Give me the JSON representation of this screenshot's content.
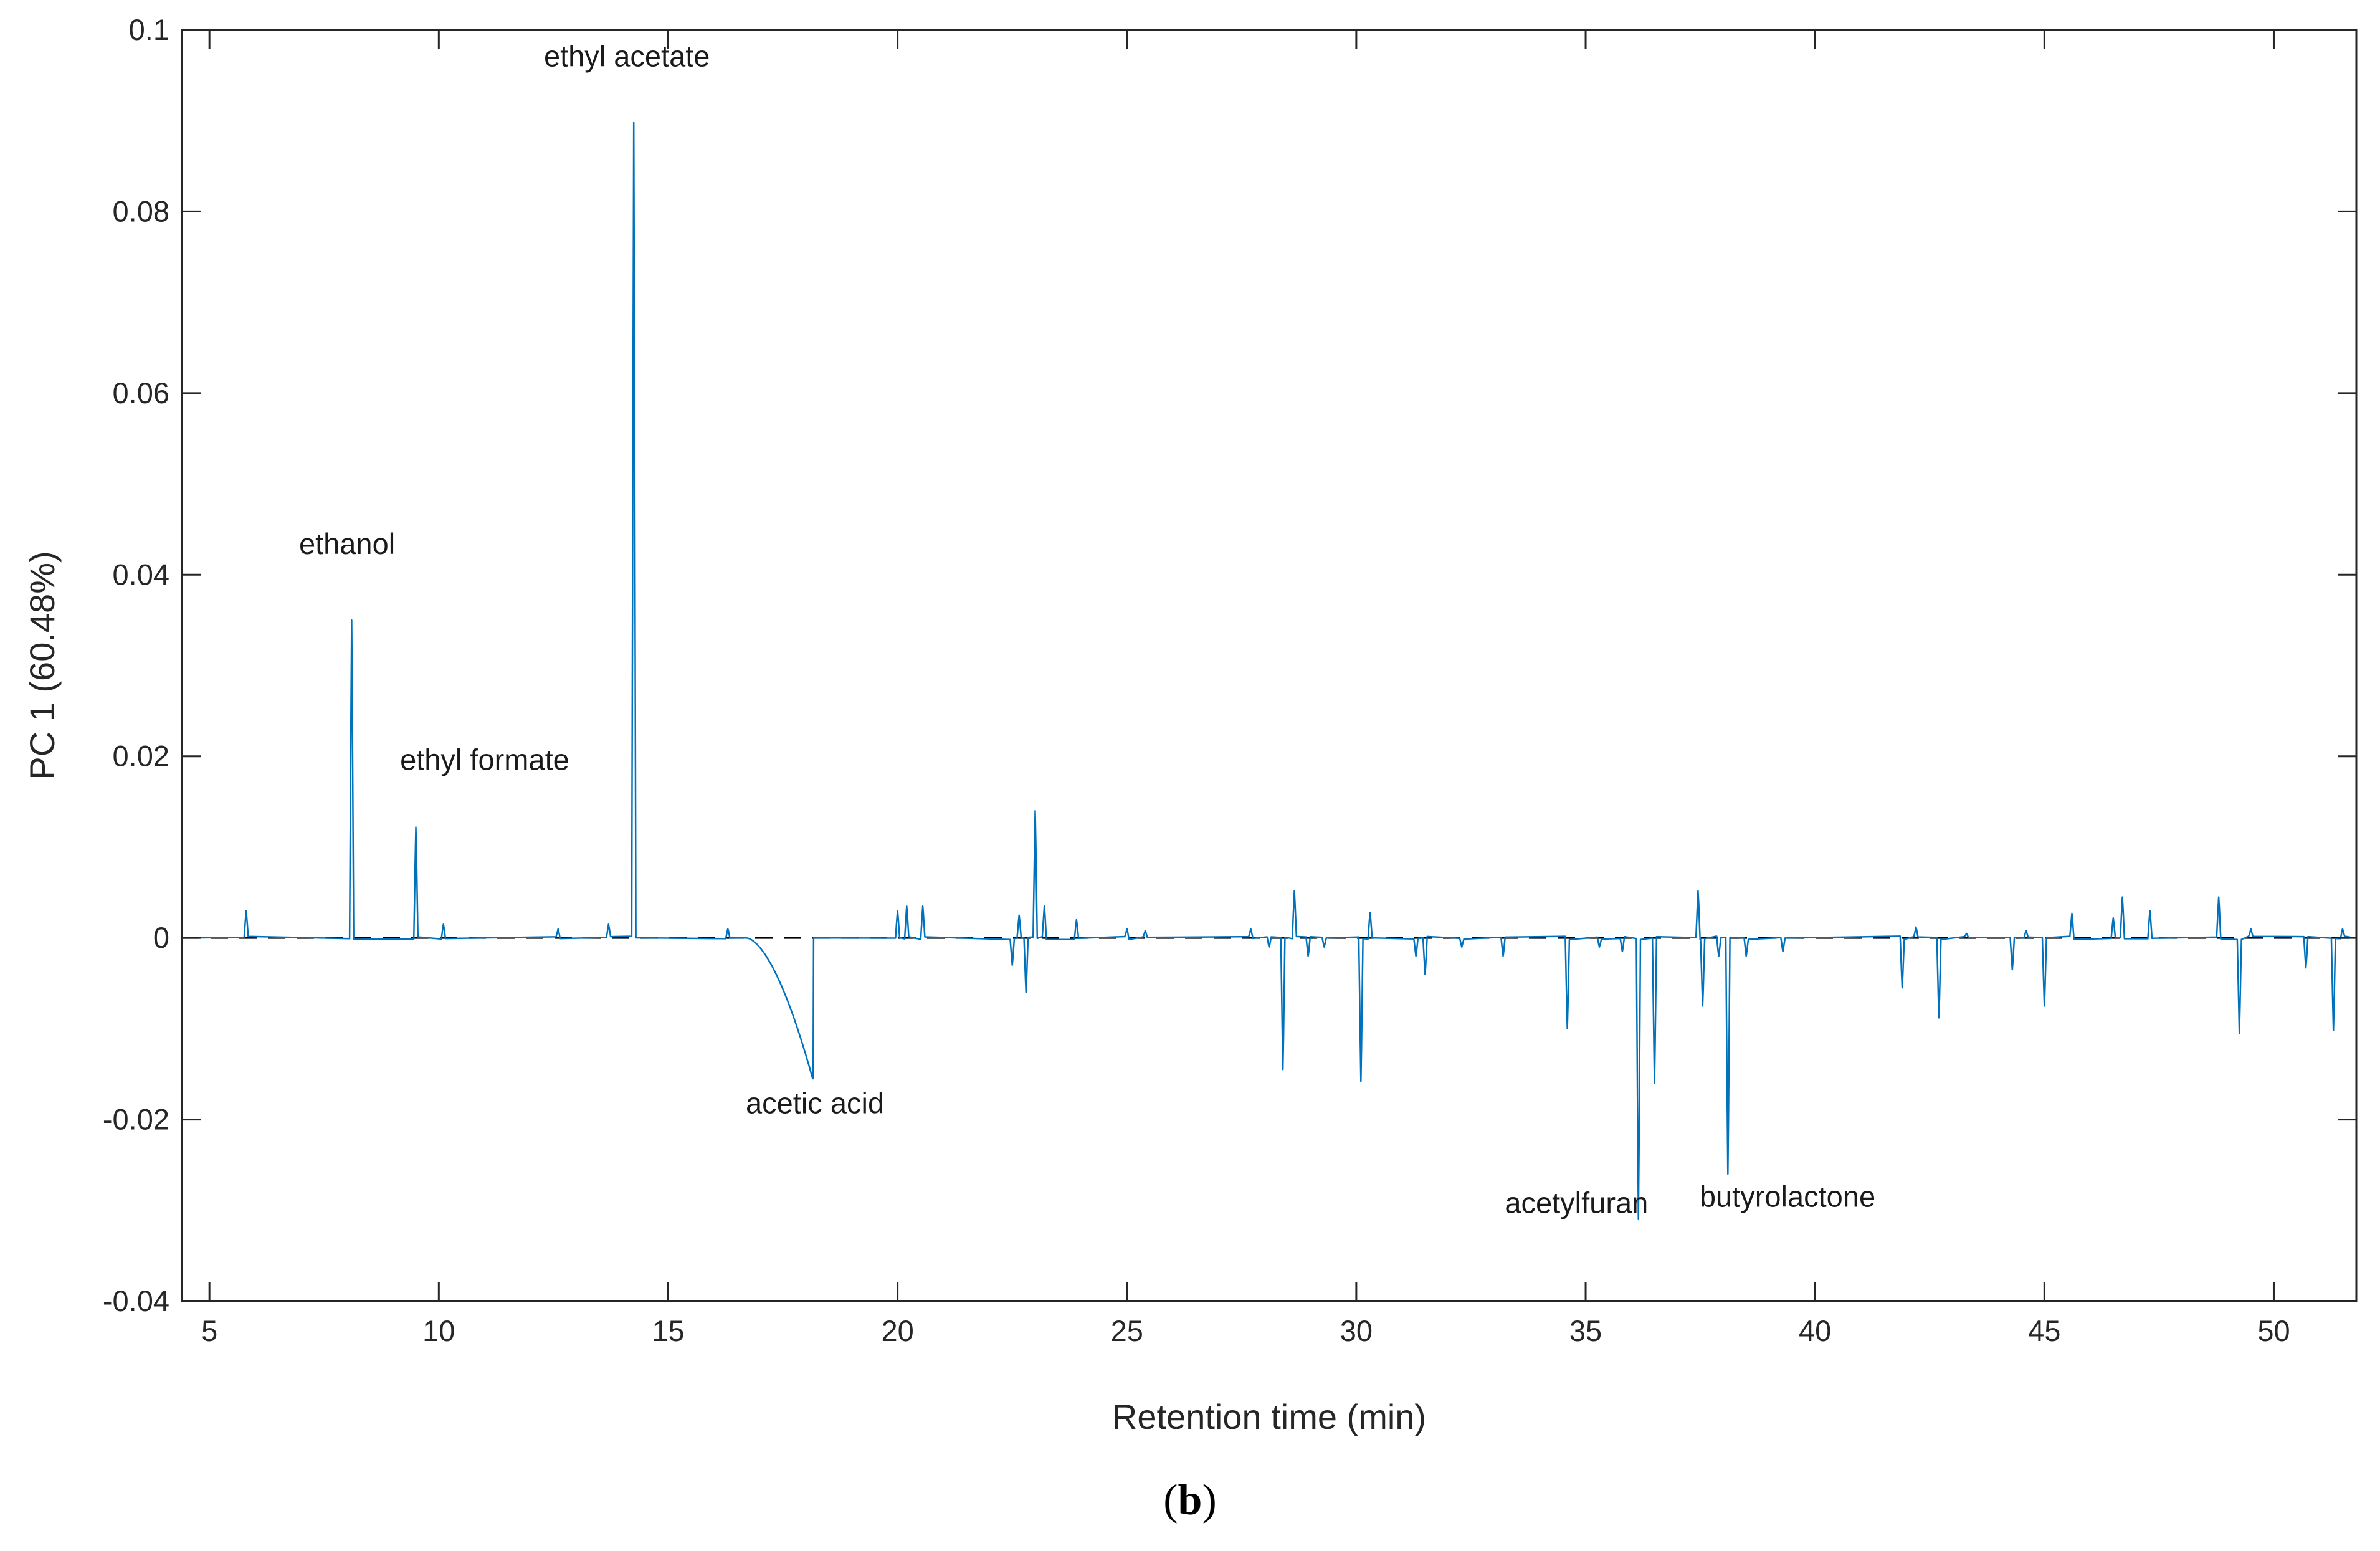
{
  "chart_data": {
    "type": "line",
    "title": "",
    "xlabel": "Retention time (min)",
    "ylabel": "PC 1 (60.48%)",
    "xlim": [
      4.4,
      51.8
    ],
    "ylim": [
      -0.04,
      0.1
    ],
    "xticks": [
      5,
      10,
      15,
      20,
      25,
      30,
      35,
      40,
      45,
      50
    ],
    "yticks": [
      -0.04,
      -0.02,
      0,
      0.02,
      0.04,
      0.06,
      0.08,
      0.1
    ],
    "ytick_labels": [
      "-0.04",
      "-0.02",
      "0",
      "0.02",
      "0.04",
      "0.06",
      "0.08",
      "0.1"
    ],
    "series_color": "#0072BD",
    "baseline": {
      "y": 0,
      "style": "dashed",
      "color": "#000000"
    },
    "peaks": [
      {
        "x": 5.8,
        "y": 0.003
      },
      {
        "x": 8.1,
        "y": 0.035
      },
      {
        "x": 9.5,
        "y": 0.0122
      },
      {
        "x": 10.1,
        "y": 0.0015
      },
      {
        "x": 12.6,
        "y": 0.001
      },
      {
        "x": 13.7,
        "y": 0.0015
      },
      {
        "x": 14.25,
        "y": 0.0898
      },
      {
        "x": 16.3,
        "y": 0.001
      },
      {
        "x": 20.0,
        "y": 0.003
      },
      {
        "x": 20.2,
        "y": 0.0035
      },
      {
        "x": 20.55,
        "y": 0.0035
      },
      {
        "x": 22.5,
        "y": -0.003
      },
      {
        "x": 22.65,
        "y": 0.0025
      },
      {
        "x": 22.8,
        "y": -0.006
      },
      {
        "x": 23.0,
        "y": 0.014
      },
      {
        "x": 23.2,
        "y": 0.0035
      },
      {
        "x": 23.9,
        "y": 0.002
      },
      {
        "x": 25.0,
        "y": 0.001
      },
      {
        "x": 25.4,
        "y": 0.0008
      },
      {
        "x": 27.7,
        "y": 0.001
      },
      {
        "x": 28.1,
        "y": -0.001
      },
      {
        "x": 28.4,
        "y": -0.0145
      },
      {
        "x": 28.65,
        "y": 0.0052
      },
      {
        "x": 28.95,
        "y": -0.002
      },
      {
        "x": 29.3,
        "y": -0.001
      },
      {
        "x": 30.1,
        "y": -0.0158
      },
      {
        "x": 30.3,
        "y": 0.0028
      },
      {
        "x": 31.3,
        "y": -0.002
      },
      {
        "x": 31.5,
        "y": -0.004
      },
      {
        "x": 32.3,
        "y": -0.001
      },
      {
        "x": 33.2,
        "y": -0.002
      },
      {
        "x": 34.6,
        "y": -0.01
      },
      {
        "x": 35.3,
        "y": -0.001
      },
      {
        "x": 35.8,
        "y": -0.0015
      },
      {
        "x": 36.15,
        "y": -0.031
      },
      {
        "x": 36.5,
        "y": -0.016
      },
      {
        "x": 37.45,
        "y": 0.0052
      },
      {
        "x": 37.55,
        "y": -0.0075
      },
      {
        "x": 37.9,
        "y": -0.002
      },
      {
        "x": 38.1,
        "y": -0.026
      },
      {
        "x": 38.5,
        "y": -0.002
      },
      {
        "x": 39.3,
        "y": -0.0015
      },
      {
        "x": 41.9,
        "y": -0.0055
      },
      {
        "x": 42.2,
        "y": 0.0012
      },
      {
        "x": 42.7,
        "y": -0.0088
      },
      {
        "x": 43.3,
        "y": 0.0005
      },
      {
        "x": 44.3,
        "y": -0.0035
      },
      {
        "x": 44.6,
        "y": 0.0008
      },
      {
        "x": 45.0,
        "y": -0.0075
      },
      {
        "x": 45.6,
        "y": 0.0027
      },
      {
        "x": 46.5,
        "y": 0.0022
      },
      {
        "x": 46.7,
        "y": 0.0045
      },
      {
        "x": 47.3,
        "y": 0.003
      },
      {
        "x": 48.8,
        "y": 0.0045
      },
      {
        "x": 49.25,
        "y": -0.0105
      },
      {
        "x": 49.5,
        "y": 0.001
      },
      {
        "x": 50.7,
        "y": -0.0033
      },
      {
        "x": 51.3,
        "y": -0.0102
      },
      {
        "x": 51.5,
        "y": 0.001
      }
    ],
    "acetic_acid_ramp": {
      "x_start": 16.7,
      "x_end": 18.15,
      "y_end": -0.0155
    },
    "annotations": [
      {
        "text": "ethyl acetate",
        "x": 14.1,
        "y": 0.096
      },
      {
        "text": "ethanol",
        "x": 8.0,
        "y": 0.0423
      },
      {
        "text": "ethyl formate",
        "x": 11.0,
        "y": 0.0185
      },
      {
        "text": "acetic acid",
        "x": 18.2,
        "y": -0.0193
      },
      {
        "text": "acetylfuran",
        "x": 34.8,
        "y": -0.0303
      },
      {
        "text": "butyrolactone",
        "x": 39.4,
        "y": -0.0296
      }
    ]
  },
  "caption": {
    "open": "(",
    "bold": "b",
    "close": ")"
  }
}
